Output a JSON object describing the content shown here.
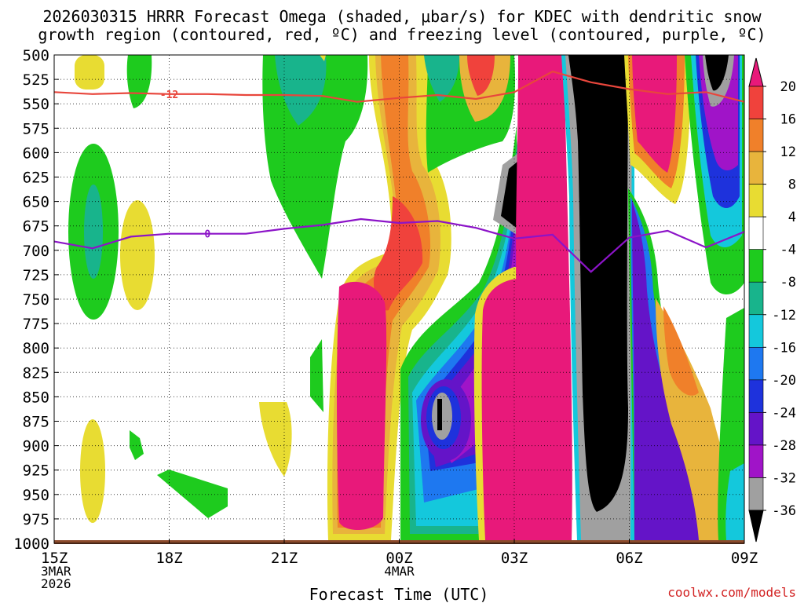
{
  "chart_data": {
    "type": "heatmap",
    "title_line1": "2026030315 HRRR Forecast Omega (shaded, μbar/s) for KDEC with dendritic snow",
    "title_line2": "growth region (contoured, red, ºC) and freezing level (contoured, purple, ºC)",
    "xlabel": "Forecast Time (UTC)",
    "credit": "coolwx.com/models",
    "y_ticks": [
      "500",
      "525",
      "550",
      "575",
      "600",
      "625",
      "650",
      "675",
      "700",
      "725",
      "750",
      "775",
      "800",
      "825",
      "850",
      "875",
      "900",
      "925",
      "950",
      "975",
      "1000"
    ],
    "y_range": [
      500,
      1000
    ],
    "x_ticks": [
      {
        "label": "15Z",
        "sub1": "3MAR",
        "sub2": "2026"
      },
      {
        "label": "18Z",
        "sub1": "",
        "sub2": ""
      },
      {
        "label": "21Z",
        "sub1": "",
        "sub2": ""
      },
      {
        "label": "00Z",
        "sub1": "4MAR",
        "sub2": ""
      },
      {
        "label": "03Z",
        "sub1": "",
        "sub2": ""
      },
      {
        "label": "06Z",
        "sub1": "",
        "sub2": ""
      },
      {
        "label": "09Z",
        "sub1": "",
        "sub2": ""
      }
    ],
    "x_range_hours": [
      15,
      33
    ],
    "colorbar": {
      "labels": [
        "20",
        "16",
        "12",
        "8",
        "4",
        "-4",
        "-8",
        "-12",
        "-16",
        "-20",
        "-24",
        "-28",
        "-32",
        "-36"
      ],
      "colors": [
        "#e8197a",
        "#f0423c",
        "#f0802a",
        "#e8b43c",
        "#e8dc32",
        "#ffffff",
        "#1ecb1e",
        "#18b48c",
        "#14c8dc",
        "#1e78f0",
        "#1e32dc",
        "#6414c8",
        "#a014c8",
        "#a0a0a0",
        "#000000"
      ]
    },
    "contours": [
      {
        "label": "-12",
        "color": "#e8463c",
        "points": [
          [
            15,
            538
          ],
          [
            16,
            540
          ],
          [
            17,
            539
          ],
          [
            18,
            540
          ],
          [
            19,
            540
          ],
          [
            20,
            541
          ],
          [
            21,
            541
          ],
          [
            22,
            542
          ],
          [
            22.9,
            548
          ],
          [
            24,
            544
          ],
          [
            25,
            541
          ],
          [
            26,
            545
          ],
          [
            27,
            538
          ],
          [
            28,
            517
          ],
          [
            29,
            528
          ],
          [
            30,
            535
          ],
          [
            31,
            540
          ],
          [
            32,
            538
          ],
          [
            33,
            548
          ]
        ]
      },
      {
        "label": "0",
        "color": "#8c14c8",
        "points": [
          [
            15,
            691
          ],
          [
            16,
            698
          ],
          [
            17,
            686
          ],
          [
            18,
            683
          ],
          [
            19,
            683
          ],
          [
            20,
            683
          ],
          [
            21,
            678
          ],
          [
            22,
            674
          ],
          [
            23,
            668
          ],
          [
            24,
            672
          ],
          [
            25,
            670
          ],
          [
            26,
            677
          ],
          [
            27,
            688
          ],
          [
            28,
            684
          ],
          [
            29,
            722
          ],
          [
            30,
            687
          ],
          [
            31,
            680
          ],
          [
            32,
            697
          ],
          [
            33,
            681
          ]
        ]
      }
    ]
  }
}
